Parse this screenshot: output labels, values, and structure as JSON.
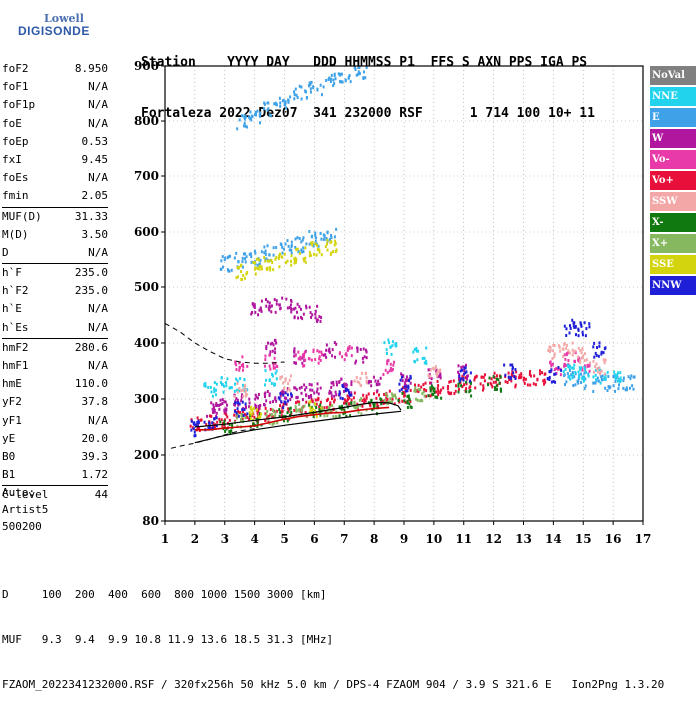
{
  "logo": {
    "line1": "Lowell",
    "line2": "DIGISONDE"
  },
  "header": {
    "labels": "Station    YYYY DAY   DDD HHMMSS P1  FFS S AXN PPS IGA PS",
    "values": "Fortaleza 2022 Dez07  341 232000 RSF      1 714 100 10+ 11"
  },
  "params": {
    "group1": [
      {
        "k": "foF2",
        "v": "8.950"
      },
      {
        "k": "foF1",
        "v": "N/A"
      },
      {
        "k": "foF1p",
        "v": "N/A"
      },
      {
        "k": "foE",
        "v": "N/A"
      },
      {
        "k": "foEp",
        "v": "0.53"
      },
      {
        "k": "fxI",
        "v": "9.45"
      },
      {
        "k": "foEs",
        "v": "N/A"
      },
      {
        "k": "fmin",
        "v": "2.05"
      }
    ],
    "group2": [
      {
        "k": "MUF(D)",
        "v": "31.33"
      },
      {
        "k": "M(D)",
        "v": "3.50"
      },
      {
        "k": "D",
        "v": "N/A"
      }
    ],
    "group3": [
      {
        "k": "h`F",
        "v": "235.0"
      },
      {
        "k": "h`F2",
        "v": "235.0"
      },
      {
        "k": "h`E",
        "v": "N/A"
      },
      {
        "k": "h`Es",
        "v": "N/A"
      }
    ],
    "group4": [
      {
        "k": "hmF2",
        "v": "280.6"
      },
      {
        "k": "hmF1",
        "v": "N/A"
      },
      {
        "k": "hmE",
        "v": "110.0"
      },
      {
        "k": "yF2",
        "v": "37.8"
      },
      {
        "k": "yF1",
        "v": "N/A"
      },
      {
        "k": "yE",
        "v": "20.0"
      },
      {
        "k": "B0",
        "v": "39.3"
      },
      {
        "k": "B1",
        "v": "1.72"
      }
    ],
    "group5": [
      {
        "k": "C-level",
        "v": "44"
      }
    ]
  },
  "misc": {
    "auto": "Auto:",
    "artist": "Artist5",
    "code": "500200"
  },
  "footer": {
    "d_line": "D     100  200  400  600  800 1000 1500 3000 [km]",
    "muf_line": "MUF   9.3  9.4  9.9 10.8 11.9 13.6 18.5 31.3 [MHz]",
    "file_line": "FZAOM_2022341232000.RSF / 320fx256h 50 kHz 5.0 km / DPS-4 FZAOM 904 / 3.9 S 321.6 E   Ion2Png 1.3.20"
  },
  "legend": [
    {
      "label": "NoVal",
      "color": "#808080"
    },
    {
      "label": "NNE",
      "color": "#22d3ee"
    },
    {
      "label": "E",
      "color": "#3fa2e8"
    },
    {
      "label": "W",
      "color": "#b0179e"
    },
    {
      "label": "Vo-",
      "color": "#e83aa8"
    },
    {
      "label": "Vo+",
      "color": "#e8103a"
    },
    {
      "label": "SSW",
      "color": "#f4a7a7"
    },
    {
      "label": "X-",
      "color": "#107a10"
    },
    {
      "label": "X+",
      "color": "#86b860"
    },
    {
      "label": "SSE",
      "color": "#d4d40e"
    },
    {
      "label": "NNW",
      "color": "#1f1fd8"
    }
  ],
  "chart_data": {
    "type": "scatter",
    "xlim": [
      1,
      17
    ],
    "ylim": [
      80,
      900
    ],
    "x_ticks": [
      "1",
      "2",
      "3",
      "4",
      "5",
      "6",
      "7",
      "8",
      "9",
      "10",
      "11",
      "12",
      "13",
      "14",
      "15",
      "16",
      "17"
    ],
    "y_ticks": [
      "80",
      "200",
      "300",
      "400",
      "500",
      "600",
      "700",
      "800",
      "900"
    ],
    "y_tick_values": [
      80,
      200,
      300,
      400,
      500,
      600,
      700,
      800,
      900
    ],
    "grid": "dotted",
    "legend_position": "right",
    "series": [
      {
        "color": "#e8103a",
        "points": [
          [
            2.0,
            255
          ],
          [
            2.5,
            262
          ],
          [
            3.0,
            265
          ],
          [
            3.5,
            270
          ],
          [
            4.0,
            272
          ],
          [
            4.5,
            275
          ],
          [
            5.0,
            280
          ],
          [
            5.5,
            285
          ],
          [
            6.0,
            290
          ],
          [
            6.5,
            292
          ],
          [
            7.0,
            296
          ],
          [
            7.5,
            300
          ],
          [
            8.0,
            302
          ],
          [
            8.5,
            305
          ],
          [
            9.0,
            310
          ],
          [
            9.5,
            318
          ],
          [
            10.0,
            322
          ],
          [
            10.5,
            326
          ],
          [
            11.0,
            330
          ],
          [
            11.5,
            332
          ],
          [
            12.0,
            335
          ],
          [
            12.5,
            338
          ],
          [
            13.0,
            340
          ],
          [
            13.5,
            340
          ]
        ]
      },
      {
        "color": "#b0179e",
        "points": [
          [
            2.5,
            285
          ],
          [
            3.0,
            292
          ],
          [
            3.5,
            298
          ],
          [
            4.0,
            300
          ],
          [
            4.5,
            305
          ],
          [
            5.0,
            310
          ],
          [
            5.5,
            315
          ],
          [
            6.0,
            318
          ],
          [
            6.5,
            320
          ],
          [
            7.0,
            325
          ],
          [
            8.0,
            330
          ],
          [
            9.0,
            335
          ],
          [
            10.0,
            345
          ],
          [
            11.0,
            350
          ],
          [
            4.0,
            465
          ],
          [
            4.5,
            470
          ],
          [
            5.0,
            470
          ],
          [
            5.5,
            460
          ],
          [
            6.0,
            455
          ],
          [
            4.5,
            395
          ],
          [
            5.5,
            380
          ],
          [
            6.5,
            390
          ],
          [
            7.5,
            380
          ]
        ]
      },
      {
        "color": "#e83aa8",
        "points": [
          [
            3.5,
            365
          ],
          [
            4.5,
            370
          ],
          [
            5.5,
            375
          ],
          [
            6.0,
            380
          ],
          [
            7.0,
            385
          ],
          [
            8.5,
            360
          ],
          [
            14.0,
            360
          ],
          [
            14.5,
            375
          ],
          [
            15.0,
            365
          ]
        ]
      },
      {
        "color": "#3fa2e8",
        "points": [
          [
            3.0,
            545
          ],
          [
            3.5,
            550
          ],
          [
            4.0,
            555
          ],
          [
            4.5,
            565
          ],
          [
            5.0,
            575
          ],
          [
            5.5,
            580
          ],
          [
            6.0,
            590
          ],
          [
            6.5,
            595
          ],
          [
            3.6,
            800
          ],
          [
            4.0,
            812
          ],
          [
            4.5,
            825
          ],
          [
            5.0,
            840
          ],
          [
            5.5,
            852
          ],
          [
            6.0,
            862
          ],
          [
            6.5,
            875
          ],
          [
            7.0,
            885
          ],
          [
            7.5,
            893
          ],
          [
            14.5,
            340
          ],
          [
            15.0,
            335
          ],
          [
            15.5,
            330
          ],
          [
            16.0,
            330
          ],
          [
            16.5,
            330
          ]
        ]
      },
      {
        "color": "#22d3ee",
        "points": [
          [
            2.5,
            320
          ],
          [
            3.0,
            328
          ],
          [
            3.5,
            330
          ],
          [
            4.5,
            340
          ],
          [
            8.5,
            395
          ],
          [
            9.5,
            380
          ],
          [
            14.5,
            350
          ],
          [
            15.0,
            345
          ],
          [
            15.5,
            345
          ],
          [
            16.0,
            340
          ]
        ]
      },
      {
        "color": "#107a10",
        "points": [
          [
            3.0,
            255
          ],
          [
            4.0,
            265
          ],
          [
            5.0,
            275
          ],
          [
            6.0,
            280
          ],
          [
            7.0,
            283
          ],
          [
            8.0,
            290
          ],
          [
            9.0,
            300
          ],
          [
            10.0,
            315
          ],
          [
            11.0,
            322
          ],
          [
            12.0,
            330
          ]
        ]
      },
      {
        "color": "#86b860",
        "points": [
          [
            3.5,
            262
          ],
          [
            4.5,
            270
          ],
          [
            5.5,
            282
          ],
          [
            6.5,
            285
          ],
          [
            7.5,
            290
          ],
          [
            8.5,
            298
          ],
          [
            9.5,
            312
          ]
        ]
      },
      {
        "color": "#d4d40e",
        "points": [
          [
            3.5,
            530
          ],
          [
            4.0,
            540
          ],
          [
            4.5,
            545
          ],
          [
            5.0,
            550
          ],
          [
            5.5,
            560
          ],
          [
            6.0,
            570
          ],
          [
            6.5,
            575
          ],
          [
            4.0,
            275
          ],
          [
            6.0,
            285
          ]
        ]
      },
      {
        "color": "#1f1fd8",
        "points": [
          [
            2.0,
            250
          ],
          [
            2.5,
            258
          ],
          [
            3.5,
            285
          ],
          [
            5.0,
            300
          ],
          [
            7.0,
            315
          ],
          [
            9.0,
            330
          ],
          [
            11.0,
            345
          ],
          [
            12.5,
            350
          ],
          [
            14.0,
            345
          ],
          [
            14.5,
            430
          ],
          [
            15.0,
            425
          ],
          [
            15.5,
            390
          ]
        ]
      },
      {
        "color": "#f4a7a7",
        "points": [
          [
            3.5,
            320
          ],
          [
            5.0,
            330
          ],
          [
            7.5,
            340
          ],
          [
            10.0,
            350
          ],
          [
            14.0,
            385
          ],
          [
            14.5,
            390
          ],
          [
            15.0,
            380
          ],
          [
            15.5,
            360
          ]
        ]
      }
    ],
    "curves": {
      "dashed_upper": [
        [
          1.0,
          435
        ],
        [
          1.5,
          420
        ],
        [
          2.0,
          400
        ],
        [
          2.5,
          385
        ],
        [
          3.0,
          372
        ],
        [
          3.5,
          366
        ],
        [
          4.0,
          364
        ],
        [
          4.5,
          364
        ],
        [
          5.0,
          366
        ]
      ],
      "dashed_lower": [
        [
          1.2,
          212
        ],
        [
          1.6,
          217
        ],
        [
          2.0,
          221
        ],
        [
          2.5,
          228
        ],
        [
          3.0,
          236
        ],
        [
          3.5,
          243
        ],
        [
          4.0,
          247
        ]
      ],
      "solid_upper": [
        [
          2.0,
          250
        ],
        [
          3.0,
          255
        ],
        [
          4.0,
          262
        ],
        [
          5.0,
          268
        ],
        [
          6.0,
          276
        ],
        [
          7.0,
          285
        ],
        [
          7.5,
          290
        ],
        [
          8.0,
          294
        ],
        [
          8.5,
          293
        ],
        [
          8.8,
          288
        ],
        [
          8.9,
          280
        ]
      ],
      "solid_lower": [
        [
          2.0,
          222
        ],
        [
          3.0,
          235
        ],
        [
          4.0,
          245
        ],
        [
          5.0,
          253
        ],
        [
          6.0,
          260
        ],
        [
          7.0,
          267
        ],
        [
          8.0,
          273
        ],
        [
          8.9,
          278
        ]
      ],
      "red_trace": [
        [
          2.0,
          245
        ],
        [
          2.5,
          245
        ],
        [
          3.0,
          248
        ],
        [
          3.5,
          250
        ],
        [
          4.0,
          252
        ],
        [
          4.5,
          258
        ],
        [
          5.0,
          264
        ],
        [
          5.5,
          269
        ],
        [
          6.0,
          272
        ],
        [
          6.5,
          275
        ],
        [
          7.0,
          276
        ],
        [
          7.5,
          280
        ],
        [
          8.0,
          283
        ],
        [
          8.5,
          285
        ]
      ]
    }
  }
}
